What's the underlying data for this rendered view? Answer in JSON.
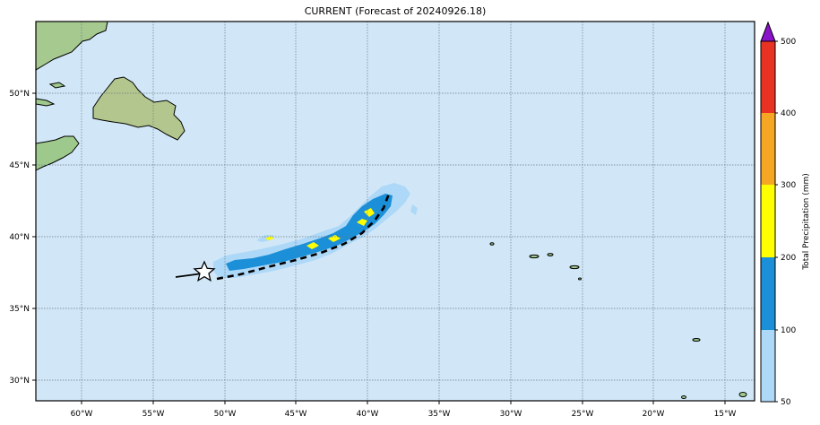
{
  "title": "CURRENT (Forecast of 20240926.18)",
  "colorbar": {
    "label": "Total Precipitation (mm)",
    "ticks": [
      "50",
      "100",
      "200",
      "300",
      "400",
      "500"
    ],
    "colors": [
      "#aed8f7",
      "#1b8fd8",
      "#ffff00",
      "#f5a623",
      "#e83323"
    ],
    "extend_color": "#8a12c8"
  },
  "axes": {
    "lon_labels": [
      "60°W",
      "55°W",
      "50°W",
      "45°W",
      "40°W",
      "35°W",
      "30°W",
      "25°W",
      "20°W",
      "15°W"
    ],
    "lat_labels": [
      "50°N",
      "45°N",
      "40°N",
      "35°N",
      "30°N"
    ]
  },
  "colors": {
    "ocean": "#d1e7f7",
    "land": "#9ec98c",
    "gridline": "#6b7b86",
    "track": "#000000"
  },
  "icons": {
    "storm_marker": "star-outline"
  }
}
